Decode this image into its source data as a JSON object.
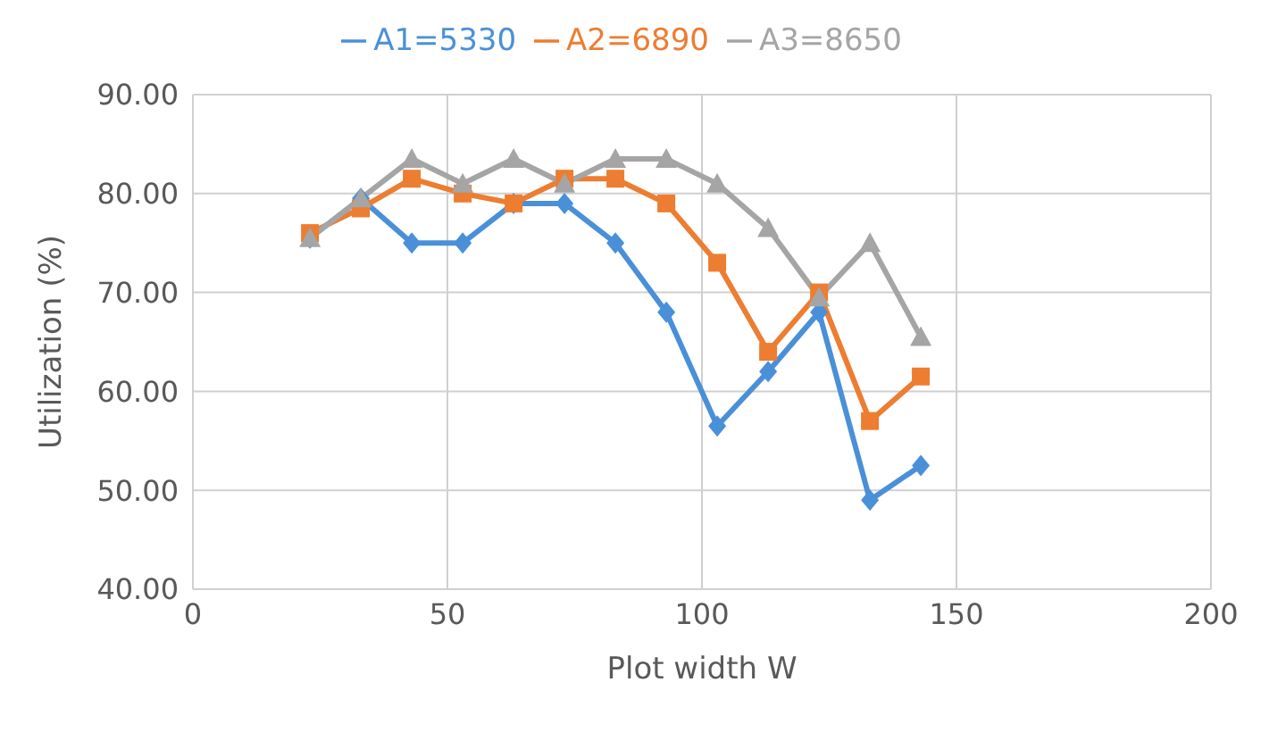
{
  "chart_data": {
    "type": "line",
    "xlabel": "Plot width W",
    "ylabel": "Utilization (%)",
    "x": [
      23,
      33,
      43,
      53,
      63,
      73,
      83,
      93,
      103,
      113,
      123,
      133,
      143
    ],
    "series": [
      {
        "name": "A1=5330",
        "color": "#4a90d9",
        "marker": "diamond",
        "values": [
          75.5,
          79.5,
          75,
          75,
          79,
          79,
          75,
          68,
          56.5,
          62,
          68,
          49,
          52.5
        ]
      },
      {
        "name": "A2=6890",
        "color": "#ed7d31",
        "marker": "square",
        "values": [
          76,
          78.5,
          81.5,
          80,
          79,
          81.5,
          81.5,
          79,
          73,
          64,
          70,
          57,
          61.5
        ]
      },
      {
        "name": "A3=8650",
        "color": "#a5a5a5",
        "marker": "triangle",
        "values": [
          75.5,
          79.5,
          83.5,
          81,
          83.5,
          81,
          83.5,
          83.5,
          81,
          76.5,
          69.5,
          75,
          65.5
        ]
      }
    ],
    "xlim": [
      0,
      200
    ],
    "xticks": [
      0,
      50,
      100,
      150,
      200
    ],
    "ylim": [
      40,
      90
    ],
    "yticks": [
      {
        "value": 40,
        "label": "40.00"
      },
      {
        "value": 50,
        "label": "50.00"
      },
      {
        "value": 60,
        "label": "60.00"
      },
      {
        "value": 70,
        "label": "70.00"
      },
      {
        "value": 80,
        "label": "80.00"
      },
      {
        "value": 90,
        "label": "90.00"
      }
    ],
    "grid": true,
    "legend": "top"
  }
}
